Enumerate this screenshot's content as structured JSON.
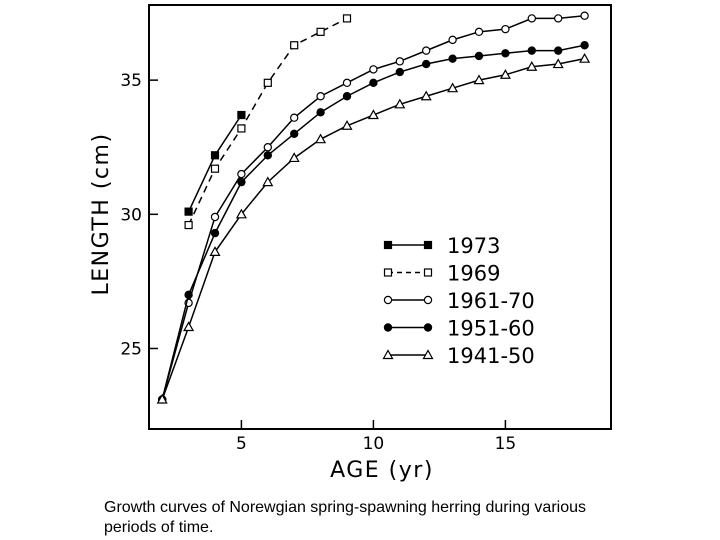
{
  "chart_data": {
    "type": "line",
    "title": "",
    "xlabel": "AGE (yr)",
    "ylabel": "LENGTH (cm)",
    "xlim": [
      1.5,
      19
    ],
    "ylim": [
      22,
      37.8
    ],
    "xticks": [
      5,
      10,
      15
    ],
    "yticks": [
      25,
      30,
      35
    ],
    "grid": false,
    "legend_position": "center-right",
    "series": [
      {
        "name": "1973",
        "marker": "filled-square",
        "dash": "solid",
        "x": [
          3,
          4,
          5
        ],
        "y": [
          30.1,
          32.2,
          33.7
        ]
      },
      {
        "name": "1969",
        "marker": "open-square",
        "dash": "dashed",
        "x": [
          3,
          4,
          5,
          6,
          7,
          8,
          9
        ],
        "y": [
          29.6,
          31.7,
          33.2,
          34.9,
          36.3,
          36.8,
          37.3
        ]
      },
      {
        "name": "1961-70",
        "marker": "open-circle",
        "dash": "solid",
        "x": [
          2,
          3,
          4,
          5,
          6,
          7,
          8,
          9,
          10,
          11,
          12,
          13,
          14,
          15,
          16,
          17,
          18
        ],
        "y": [
          23.1,
          26.7,
          29.9,
          31.5,
          32.5,
          33.6,
          34.4,
          34.9,
          35.4,
          35.7,
          36.1,
          36.5,
          36.8,
          36.9,
          37.3,
          37.3,
          37.4
        ]
      },
      {
        "name": "1951-60",
        "marker": "filled-circle",
        "dash": "solid",
        "x": [
          2,
          3,
          4,
          5,
          6,
          7,
          8,
          9,
          10,
          11,
          12,
          13,
          14,
          15,
          16,
          17,
          18
        ],
        "y": [
          23.1,
          27.0,
          29.3,
          31.2,
          32.2,
          33.0,
          33.8,
          34.4,
          34.9,
          35.3,
          35.6,
          35.8,
          35.9,
          36.0,
          36.1,
          36.1,
          36.3
        ]
      },
      {
        "name": "1941-50",
        "marker": "open-triangle",
        "dash": "solid",
        "x": [
          2,
          3,
          4,
          5,
          6,
          7,
          8,
          9,
          10,
          11,
          12,
          13,
          14,
          15,
          16,
          17,
          18
        ],
        "y": [
          23.1,
          25.8,
          28.6,
          30.0,
          31.2,
          32.1,
          32.8,
          33.3,
          33.7,
          34.1,
          34.4,
          34.7,
          35.0,
          35.2,
          35.5,
          35.6,
          35.8
        ]
      }
    ]
  },
  "caption": "Growth curves of Norewgian spring-spawning herring during various periods of time."
}
